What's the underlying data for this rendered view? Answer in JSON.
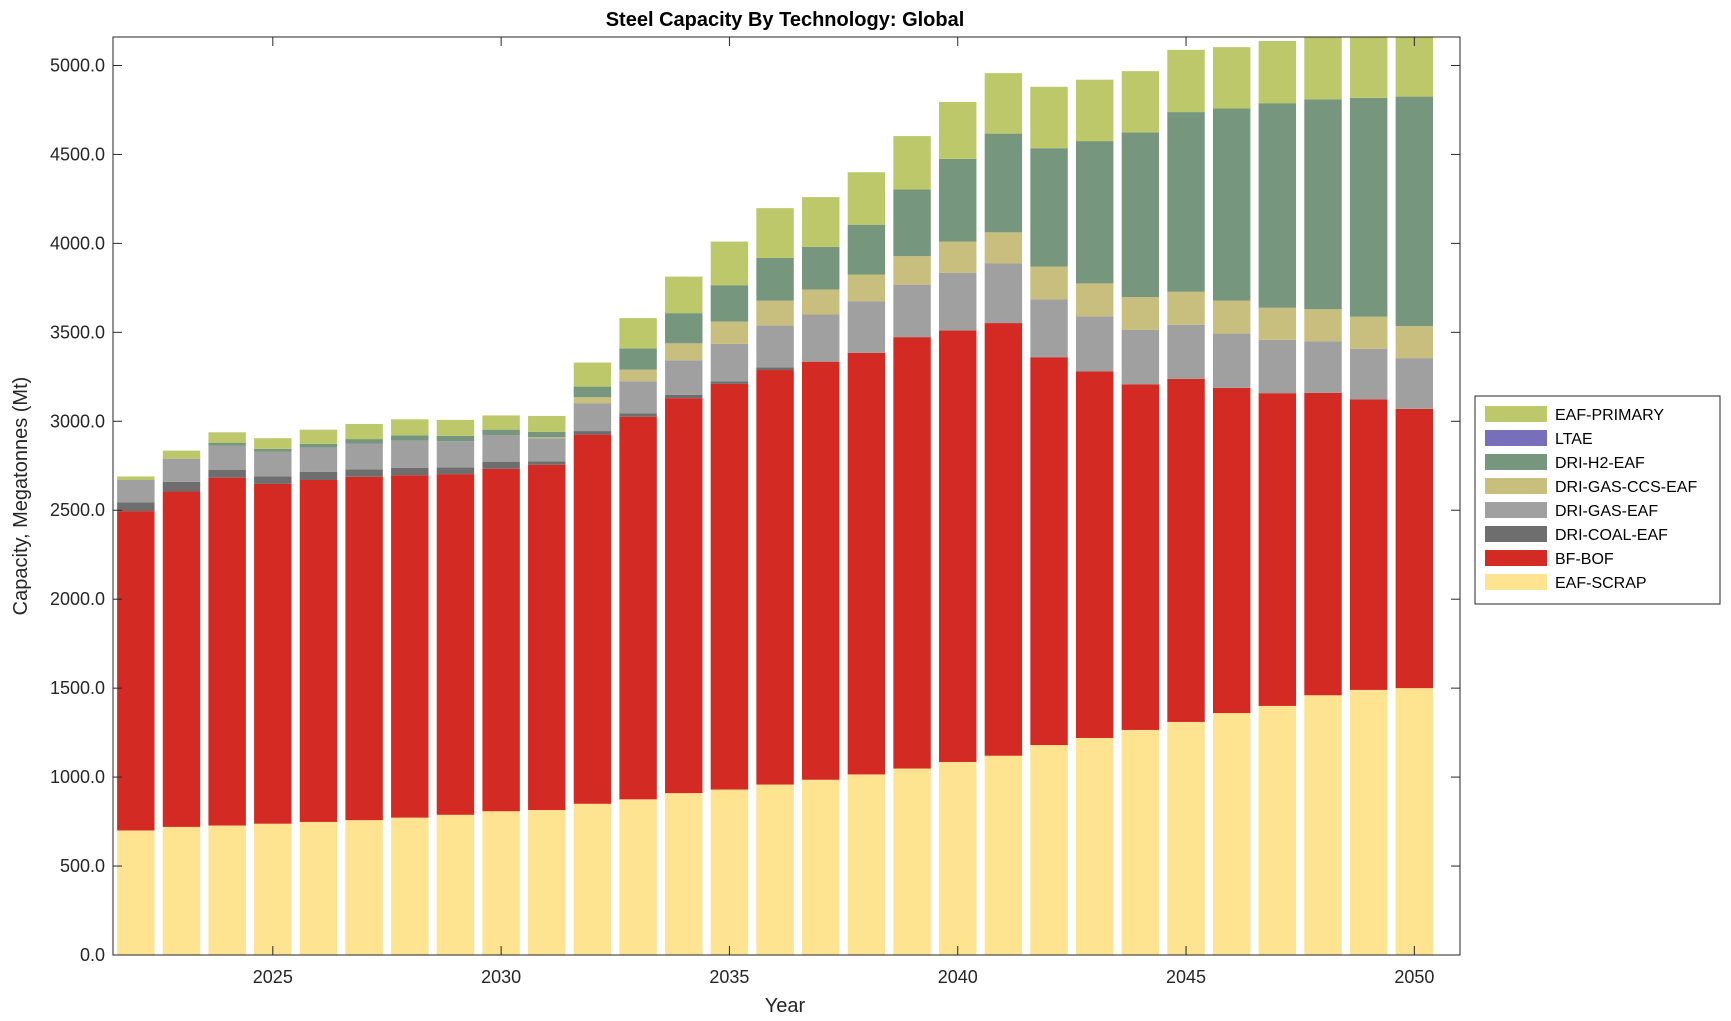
{
  "chart_data": {
    "type": "bar",
    "stacked": true,
    "title": "Steel Capacity By Technology: Global",
    "xlabel": "Year",
    "ylabel": "Capacity, Megatonnes (Mt)",
    "xlim": [
      2021.5,
      2051.0
    ],
    "ylim": [
      0,
      5160
    ],
    "yticks": [
      0,
      500,
      1000,
      1500,
      2000,
      2500,
      3000,
      3500,
      4000,
      4500,
      5000
    ],
    "ytick_labels": [
      "0.0",
      "500.0",
      "1000.0",
      "1500.0",
      "2000.0",
      "2500.0",
      "3000.0",
      "3500.0",
      "4000.0",
      "4500.0",
      "5000.0"
    ],
    "xticks": [
      2025,
      2030,
      2035,
      2040,
      2045,
      2050
    ],
    "xtick_labels": [
      "2025",
      "2030",
      "2035",
      "2040",
      "2045",
      "2050"
    ],
    "legend_position": "outside-right",
    "grid": false,
    "x": [
      2022,
      2023,
      2024,
      2025,
      2026,
      2027,
      2028,
      2029,
      2030,
      2031,
      2032,
      2033,
      2034,
      2035,
      2036,
      2037,
      2038,
      2039,
      2040,
      2041,
      2042,
      2043,
      2044,
      2045,
      2046,
      2047,
      2048,
      2049,
      2050
    ],
    "series": [
      {
        "name": "EAF-SCRAP",
        "color": "#FEE391",
        "values": [
          700,
          720,
          728,
          738,
          748,
          758,
          772,
          788,
          808,
          815,
          850,
          875,
          910,
          930,
          958,
          985,
          1015,
          1048,
          1085,
          1120,
          1180,
          1220,
          1265,
          1310,
          1360,
          1400,
          1460,
          1490,
          1500
        ]
      },
      {
        "name": "BF-BOF",
        "color": "#D32A23",
        "values": [
          1795,
          1885,
          1955,
          1910,
          1922,
          1930,
          1925,
          1915,
          1925,
          1940,
          2075,
          2150,
          2220,
          2280,
          2330,
          2350,
          2370,
          2425,
          2425,
          2432,
          2180,
          2060,
          1943,
          1928,
          1828,
          1758,
          1700,
          1633,
          1570
        ]
      },
      {
        "name": "DRI-COAL-EAF",
        "color": "#6E6E6E",
        "values": [
          50,
          55,
          45,
          42,
          45,
          42,
          42,
          38,
          40,
          20,
          20,
          20,
          18,
          15,
          15,
          0,
          0,
          0,
          0,
          0,
          0,
          0,
          0,
          0,
          0,
          0,
          0,
          0,
          0
        ]
      },
      {
        "name": "DRI-GAS-EAF",
        "color": "#A0A0A0",
        "values": [
          125,
          130,
          135,
          140,
          138,
          145,
          152,
          147,
          150,
          130,
          155,
          180,
          195,
          210,
          235,
          265,
          290,
          295,
          325,
          335,
          325,
          310,
          305,
          305,
          305,
          300,
          290,
          285,
          285
        ]
      },
      {
        "name": "DRI-GAS-CCS-EAF",
        "color": "#C8BE7D",
        "values": [
          0,
          0,
          0,
          0,
          0,
          0,
          0,
          0,
          0,
          5,
          35,
          65,
          95,
          125,
          140,
          140,
          150,
          160,
          175,
          175,
          185,
          185,
          185,
          185,
          185,
          180,
          180,
          180,
          180
        ]
      },
      {
        "name": "DRI-H2-EAF",
        "color": "#76977E",
        "values": [
          0,
          0,
          15,
          15,
          20,
          25,
          30,
          30,
          30,
          30,
          60,
          120,
          170,
          205,
          240,
          240,
          280,
          375,
          465,
          555,
          665,
          800,
          925,
          1010,
          1080,
          1150,
          1180,
          1230,
          1290
        ]
      },
      {
        "name": "LTAE",
        "color": "#7570B9",
        "values": [
          0,
          0,
          0,
          0,
          0,
          0,
          0,
          0,
          0,
          0,
          0,
          0,
          0,
          0,
          0,
          0,
          0,
          0,
          0,
          0,
          0,
          0,
          0,
          0,
          0,
          0,
          0,
          0,
          0
        ]
      },
      {
        "name": "EAF-PRIMARY",
        "color": "#BDC86A",
        "values": [
          20,
          45,
          60,
          60,
          80,
          85,
          90,
          90,
          80,
          90,
          135,
          170,
          205,
          245,
          280,
          280,
          295,
          300,
          320,
          340,
          345,
          345,
          345,
          350,
          345,
          350,
          350,
          350,
          350
        ]
      }
    ],
    "legend_order": [
      "EAF-PRIMARY",
      "LTAE",
      "DRI-H2-EAF",
      "DRI-GAS-CCS-EAF",
      "DRI-GAS-EAF",
      "DRI-COAL-EAF",
      "BF-BOF",
      "EAF-SCRAP"
    ]
  }
}
